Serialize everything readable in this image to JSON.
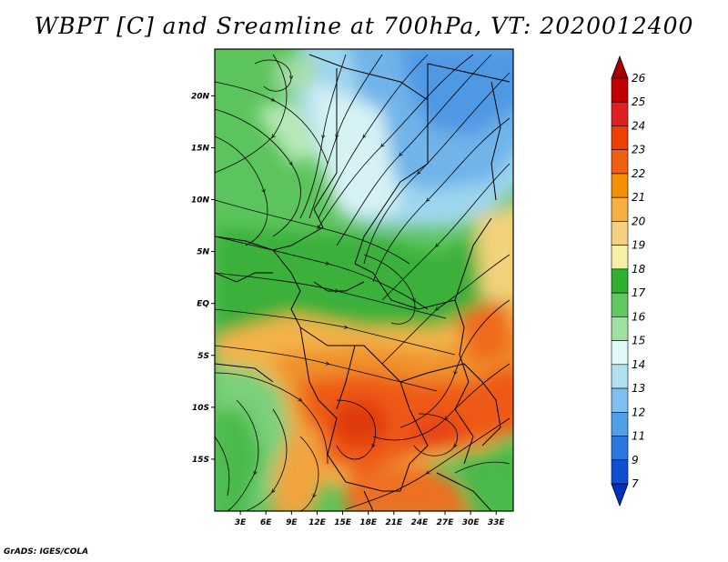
{
  "title": "WBPT [C] and Sreamline at 700hPa, VT: 2020012400",
  "footer": "GrADS: IGES/COLA",
  "map": {
    "lat_labels": [
      "20N",
      "15N",
      "10N",
      "5N",
      "EQ",
      "5S",
      "10S",
      "15S"
    ],
    "lat_values": [
      20,
      15,
      10,
      5,
      0,
      -5,
      -10,
      -15
    ],
    "lon_labels": [
      "3E",
      "6E",
      "9E",
      "12E",
      "15E",
      "18E",
      "21E",
      "24E",
      "27E",
      "30E",
      "33E"
    ],
    "lon_values": [
      3,
      6,
      9,
      12,
      15,
      18,
      21,
      24,
      27,
      30,
      33
    ],
    "lon_range": [
      0,
      35
    ],
    "lat_range": [
      -20,
      24.5
    ]
  },
  "colorbar": {
    "levels": [
      "26",
      "25",
      "24",
      "23",
      "22",
      "21",
      "20",
      "19",
      "18",
      "17",
      "16",
      "15",
      "14",
      "13",
      "12",
      "11",
      "9",
      "7"
    ],
    "colors": [
      "#a00000",
      "#c00000",
      "#e02020",
      "#ee4000",
      "#f06010",
      "#f59000",
      "#f5b040",
      "#f5d080",
      "#f5f0a8",
      "#30b030",
      "#60c860",
      "#a0e0a0",
      "#e0f8f8",
      "#b0e0f0",
      "#80c0f0",
      "#50a0e8",
      "#2878e0",
      "#1050d0",
      "#0030c0"
    ]
  }
}
